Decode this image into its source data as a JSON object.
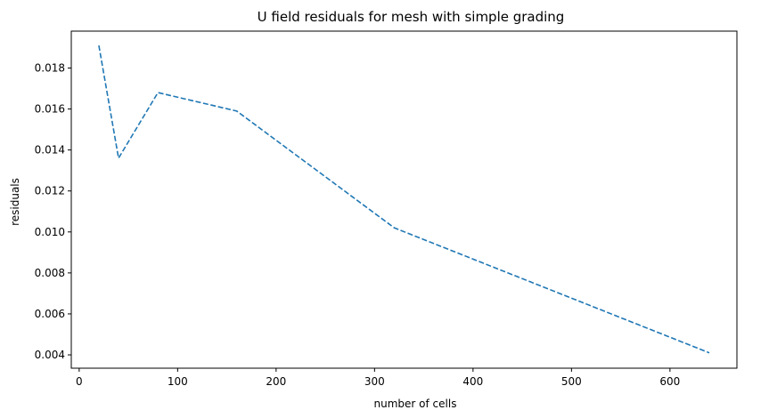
{
  "chart_data": {
    "type": "line",
    "title": "U field residuals for mesh with simple grading",
    "xlabel": "number of cells",
    "ylabel": "residuals",
    "xlim": [
      -8,
      668
    ],
    "ylim": [
      0.00335,
      0.0198
    ],
    "xticks": [
      0,
      100,
      200,
      300,
      400,
      500,
      600
    ],
    "xtick_labels": [
      "0",
      "100",
      "200",
      "300",
      "400",
      "500",
      "600"
    ],
    "yticks": [
      0.004,
      0.006,
      0.008,
      0.01,
      0.012,
      0.014,
      0.016,
      0.018
    ],
    "ytick_labels": [
      "0.004",
      "0.006",
      "0.008",
      "0.010",
      "0.012",
      "0.014",
      "0.016",
      "0.018"
    ],
    "grid": false,
    "series": [
      {
        "x": [
          20,
          40,
          80,
          160,
          320,
          640
        ],
        "y": [
          0.0191,
          0.0136,
          0.0168,
          0.0159,
          0.0102,
          0.0041
        ],
        "color": "#1f77b4",
        "line_style": "dashed"
      }
    ]
  }
}
